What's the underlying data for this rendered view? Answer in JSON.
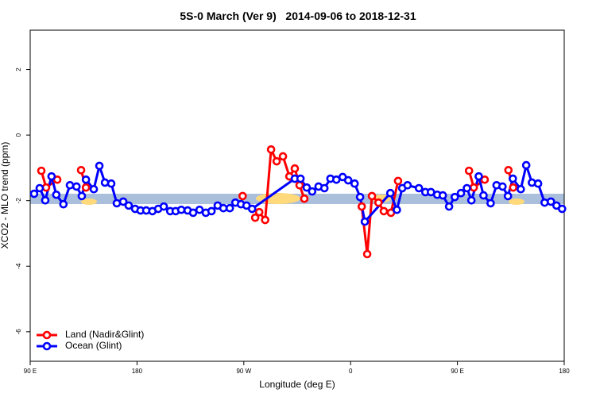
{
  "chart_data": {
    "type": "line",
    "title": "5S-0 March (Ver 9)   2014-09-06 to 2018-12-31",
    "x_label": "Longitude (deg E)",
    "y_label": "XCO2 - MLO trend (ppm)",
    "xlim": [
      90,
      540
    ],
    "ylim": [
      -6.9,
      3.2
    ],
    "xticks": [
      {
        "value": 90,
        "label": "90 E"
      },
      180,
      {
        "value": 270,
        "label": "90 W"
      },
      {
        "value": 360,
        "label": "0"
      },
      {
        "value": 450,
        "label": "90 E"
      },
      {
        "value": 540,
        "label": "180"
      }
    ],
    "yticks": [
      -6,
      -4,
      -2,
      0,
      2
    ],
    "legend": "bottom-left",
    "series": [
      {
        "name": "Land (Nadir&Glint)",
        "color": "#ff0000",
        "x": [
          99.4,
          103.4,
          112.8,
          null,
          132.9,
          137,
          null,
          269,
          null,
          279.6,
          283,
          288,
          293,
          297.7,
          303,
          308.4,
          313,
          317,
          321,
          null,
          369.4,
          374,
          378,
          383.5,
          388,
          394,
          400,
          null,
          459.8,
          463.8,
          473,
          null,
          493,
          497
        ],
        "values": [
          -1.09,
          -1.6,
          -1.36,
          null,
          -1.07,
          -1.6,
          null,
          -1.86,
          null,
          -2.52,
          -2.35,
          -2.59,
          -0.44,
          -0.8,
          -0.65,
          -1.26,
          -1.02,
          -1.53,
          -1.94,
          null,
          -2.18,
          -3.63,
          -1.86,
          -2.06,
          -2.32,
          -2.37,
          -1.4,
          null,
          -1.09,
          -1.6,
          -1.36,
          null,
          -1.07,
          -1.6
        ]
      },
      {
        "name": "Ocean (Glint)",
        "color": "#0000ff",
        "x": [
          93.3,
          98,
          102.7,
          108,
          112,
          118,
          123.5,
          129,
          133.5,
          137,
          143.6,
          148.3,
          153,
          158.3,
          163,
          168.4,
          173,
          178.4,
          183,
          187.8,
          193,
          197.9,
          202.6,
          208,
          212.6,
          217.3,
          222.7,
          227.3,
          232.7,
          238,
          242.8,
          248,
          252.8,
          258.2,
          262.9,
          267.6,
          272.3,
          277,
          313,
          317.8,
          323,
          327.6,
          333,
          337.9,
          343,
          348,
          353.3,
          358,
          363.4,
          368,
          372,
          393.5,
          399,
          403.5,
          408,
          417.6,
          423,
          427.7,
          433,
          437.7,
          443,
          447.8,
          453,
          458,
          461.8,
          468,
          472,
          478,
          483,
          488,
          492.6,
          496.7,
          503.4,
          508,
          512.8,
          518,
          523.5,
          528.8,
          533.5,
          538.2
        ],
        "values": [
          -1.79,
          -1.62,
          -1.99,
          -1.26,
          -1.82,
          -2.11,
          -1.53,
          -1.57,
          -1.86,
          -1.36,
          -1.65,
          -0.94,
          -1.45,
          -1.48,
          -2.08,
          -2.03,
          -2.15,
          -2.25,
          -2.3,
          -2.3,
          -2.32,
          -2.25,
          -2.18,
          -2.32,
          -2.32,
          -2.28,
          -2.3,
          -2.37,
          -2.28,
          -2.37,
          -2.32,
          -2.15,
          -2.23,
          -2.23,
          -2.06,
          -2.11,
          -2.15,
          -2.25,
          -1.33,
          -1.33,
          -1.6,
          -1.72,
          -1.57,
          -1.62,
          -1.33,
          -1.36,
          -1.28,
          -1.38,
          -1.48,
          -1.89,
          -2.64,
          -1.77,
          -2.28,
          -1.62,
          -1.53,
          -1.62,
          -1.74,
          -1.74,
          -1.82,
          -1.84,
          -2.18,
          -1.89,
          -1.77,
          -1.62,
          -1.99,
          -1.26,
          -1.84,
          -2.08,
          -1.53,
          -1.57,
          -1.86,
          -1.33,
          -1.65,
          -0.92,
          -1.45,
          -1.48,
          -2.06,
          -2.03,
          -2.15,
          -2.25
        ]
      }
    ]
  }
}
